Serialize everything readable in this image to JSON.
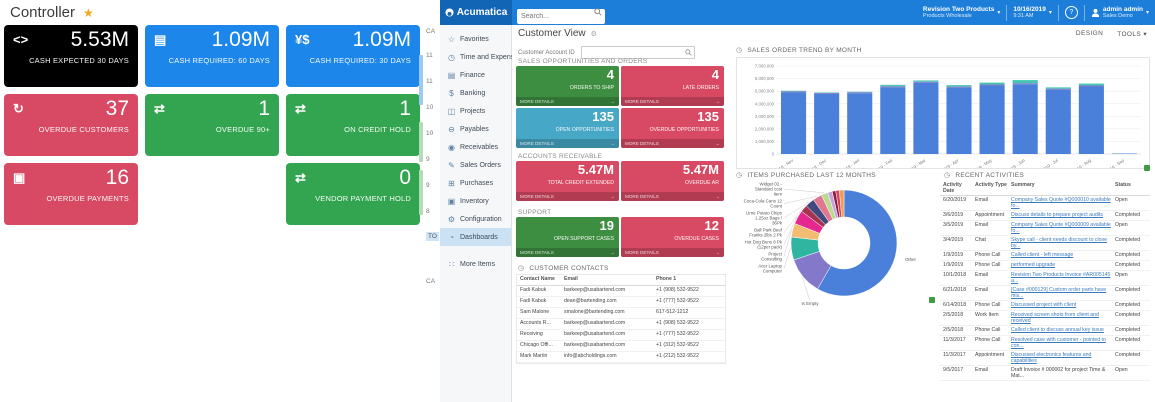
{
  "controller": {
    "title": "Controller",
    "tiles": [
      {
        "value": "5.53M",
        "label": "CASH EXPECTED 30 DAYS",
        "color": "#000000",
        "icon": "code-brackets-icon"
      },
      {
        "value": "1.09M",
        "label": "CASH REQUIRED: 60 DAYS",
        "color": "#1d86ea",
        "icon": "banknote-icon"
      },
      {
        "value": "1.09M",
        "label": "CASH REQUIRED: 30 DAYS",
        "color": "#1d86ea",
        "icon": "currency-icon"
      },
      {
        "value": "37",
        "label": "OVERDUE CUSTOMERS",
        "color": "#d84a63",
        "icon": "refresh-icon"
      },
      {
        "value": "1",
        "label": "OVERDUE 90+",
        "color": "#33a450",
        "icon": "swap-arrows-icon"
      },
      {
        "value": "1",
        "label": "ON CREDIT HOLD",
        "color": "#33a450",
        "icon": "swap-arrows-icon"
      },
      {
        "value": "16",
        "label": "OVERDUE PAYMENTS",
        "color": "#d84a63",
        "icon": "clipboard-icon"
      },
      null,
      {
        "value": "0",
        "label": "VENDOR PAYMENT HOLD",
        "color": "#33a450",
        "icon": "swap-arrows-icon"
      }
    ]
  },
  "cut_strip": {
    "header": "CA",
    "ticks": [
      "11",
      "11",
      "10",
      "10",
      "9",
      "9",
      "8"
    ],
    "highlight": "TO",
    "footer": "CA"
  },
  "topbar": {
    "brand": "Acumatica",
    "search_placeholder": "Search...",
    "company": {
      "line1": "Revision Two Products",
      "line2": "Products Wholesale"
    },
    "datetime": {
      "line1": "10/16/2019",
      "line2": "9:31 AM"
    },
    "help_glyph": "?",
    "user": {
      "line1": "admin admin",
      "line2": "Sales Demo"
    }
  },
  "sidebar": {
    "items": [
      {
        "label": "Favorites",
        "icon": "star-icon"
      },
      {
        "label": "Time and Expenses",
        "icon": "clock-icon"
      },
      {
        "label": "Finance",
        "icon": "ledger-icon"
      },
      {
        "label": "Banking",
        "icon": "dollar-icon"
      },
      {
        "label": "Projects",
        "icon": "projects-icon"
      },
      {
        "label": "Payables",
        "icon": "payables-icon"
      },
      {
        "label": "Receivables",
        "icon": "receivables-icon"
      },
      {
        "label": "Sales Orders",
        "icon": "sales-orders-icon"
      },
      {
        "label": "Purchases",
        "icon": "cart-icon"
      },
      {
        "label": "Inventory",
        "icon": "truck-icon"
      },
      {
        "label": "Configuration",
        "icon": "gear-icon"
      },
      {
        "label": "Dashboards",
        "icon": "dashboard-icon",
        "selected": true
      },
      {
        "label": "More Items",
        "icon": "grid-icon",
        "gap": true
      }
    ]
  },
  "page": {
    "title": "Customer View",
    "design_label": "DESIGN",
    "tools_label": "TOOLS ▾",
    "account_field_label": "Customer Account ID"
  },
  "sections": {
    "sales_opps": {
      "title": "SALES OPPORTUNITIES AND ORDERS",
      "tiles": [
        {
          "value": "4",
          "label": "ORDERS TO SHIP",
          "color": "#3e8e41",
          "footer": "MORE DETAILS"
        },
        {
          "value": "4",
          "label": "LATE ORDERS",
          "color": "#d84a63",
          "footer": "MORE DETAILS"
        },
        {
          "value": "135",
          "label": "OPEN OPPORTUNITIES",
          "color": "#47a7c6",
          "footer": "MORE DETAILS"
        },
        {
          "value": "135",
          "label": "OVERDUE OPPORTUNITIES",
          "color": "#d84a63",
          "footer": "MORE DETAILS"
        }
      ]
    },
    "accounts_receivable": {
      "title": "ACCOUNTS RECEIVABLE",
      "tiles": [
        {
          "value": "5.47M",
          "label": "TOTAL CREDIT EXTENDED",
          "color": "#d84a63",
          "footer": "MORE DETAILS"
        },
        {
          "value": "5.47M",
          "label": "OVERDUE AR",
          "color": "#d84a63",
          "footer": "MORE DETAILS"
        }
      ]
    },
    "support": {
      "title": "SUPPORT",
      "tiles": [
        {
          "value": "19",
          "label": "OPEN SUPPORT CASES",
          "color": "#3e8e41",
          "footer": "MORE DETAILS"
        },
        {
          "value": "12",
          "label": "OVERDUE CASES",
          "color": "#d84a63",
          "footer": "MORE DETAILS"
        }
      ]
    },
    "contacts": {
      "title": "CUSTOMER CONTACTS",
      "columns": [
        "Contact Name",
        "Email",
        "Phone 1"
      ],
      "rows": [
        {
          "name": "Fadi Kabuk",
          "email": "barkeep@usabartend.com",
          "phone": "+1 (908) 532-9522"
        },
        {
          "name": "Fadi Kabuk",
          "email": "dean@bartending.com",
          "phone": "+1 (777) 532-9522"
        },
        {
          "name": "Sam Malone",
          "email": "smalone@bartending.com",
          "phone": "617-512-1212"
        },
        {
          "name": "Accounts R...",
          "email": "barkeep@usabartend.com",
          "phone": "+1 (908) 532-9522"
        },
        {
          "name": "Receiving",
          "email": "barkeep@usabartend.com",
          "phone": "+1 (777) 532-9522"
        },
        {
          "name": "Chicago Offi...",
          "email": "barkeep@usabartend.com",
          "phone": "+1 (312) 532-9522"
        },
        {
          "name": "Mark Martin",
          "email": "info@abcholdings.com",
          "phone": "+1 (212) 532-9522"
        }
      ]
    }
  },
  "chart_data": [
    {
      "type": "bar",
      "title": "SALES ORDER TREND BY MONTH",
      "stacked": true,
      "categories": [
        "2018 - Nov",
        "2018 - Dec",
        "2019 - Jan",
        "2019 - Feb",
        "2019 - Mar",
        "2019 - Apr",
        "2019 - May",
        "2019 - Jun",
        "2019 - Jul",
        "2019 - Aug",
        "2019 - Sep"
      ],
      "series": [
        {
          "name": "series-1",
          "color": "#4a80d9",
          "values": [
            4900000,
            4780000,
            4830000,
            5300000,
            5670000,
            5280000,
            5450000,
            5550000,
            5120000,
            5370000,
            40000
          ]
        },
        {
          "name": "series-2",
          "color": "#8478cb",
          "values": [
            80000,
            80000,
            80000,
            80000,
            80000,
            80000,
            80000,
            80000,
            80000,
            80000,
            0
          ]
        },
        {
          "name": "series-3",
          "color": "#46c6b2",
          "values": [
            50000,
            40000,
            40000,
            120000,
            100000,
            120000,
            150000,
            250000,
            100000,
            150000,
            0
          ]
        }
      ],
      "ylim": [
        0,
        7000000
      ],
      "yticks": [
        "0",
        "1,000,000",
        "2,000,000",
        "3,000,000",
        "4,000,000",
        "5,000,000",
        "6,000,000",
        "7,000,000"
      ],
      "grid": true,
      "legend": "none"
    },
    {
      "type": "pie",
      "title": "ITEMS PURCHASED LAST 12 MONTHS",
      "donut": true,
      "slices": [
        {
          "label": "Other",
          "pct": 58.3,
          "color": "#4a80d9"
        },
        {
          "label": "Is Empty",
          "pct": 11.5,
          "color": "#8478cb"
        },
        {
          "label": "Acer Laptop Computer",
          "pct": 7,
          "color": "#2fb5a0"
        },
        {
          "label": "Project Consulting",
          "pct": 4.2,
          "color": "#f2bd72"
        },
        {
          "label": "Hot Dog Buns 8 Pk (12per pack)",
          "pct": 4.2,
          "color": "#e5288f"
        },
        {
          "label": "Ball Park Beef Franks 2lbs 2 Pk",
          "pct": 2.2,
          "color": "#a63350"
        },
        {
          "label": "Urne Potato Chips 1.25oz Bags / 36Pk",
          "pct": 2.8,
          "color": "#414a7e"
        },
        {
          "label": "Coca-Cola Cans 12 Count",
          "pct": 2.8,
          "color": "#e27791"
        },
        {
          "label": "Widget 02 - Standard cost item",
          "pct": 2,
          "color": "#b8dc8e"
        },
        {
          "label": "",
          "pct": 1.4,
          "color": "#c9a3e2"
        },
        {
          "label": "",
          "pct": 1.1,
          "color": "#8e2138"
        },
        {
          "label": "",
          "pct": 1.1,
          "color": "#d94062"
        },
        {
          "label": "",
          "pct": 1.4,
          "color": "#eb9e55"
        }
      ]
    },
    {
      "type": "table",
      "title": "RECENT ACTIVITIES",
      "columns": [
        "Activity Date",
        "Activity Type",
        "Summary",
        "Status"
      ],
      "rows": [
        {
          "date": "6/20/2019",
          "type": "Email",
          "summary": "Company Sales Quote #Q000010 available fo...",
          "status": "Open",
          "link": true
        },
        {
          "date": "3/6/2019",
          "type": "Appointment",
          "summary": "Discuss details to prepare project audits",
          "status": "Completed",
          "link": true
        },
        {
          "date": "3/5/2019",
          "type": "Email",
          "summary": "Company Sales Quote #Q000009 available fo...",
          "status": "Open",
          "link": true
        },
        {
          "date": "3/4/2019",
          "type": "Chat",
          "summary": "Skype call - client needs discount to close by...",
          "status": "Completed",
          "link": true
        },
        {
          "date": "1/9/2019",
          "type": "Phone Call",
          "summary": "Called client - left message",
          "status": "Completed",
          "link": true
        },
        {
          "date": "1/9/2019",
          "type": "Phone Call",
          "summary": "performed upgrade",
          "status": "Completed",
          "link": true
        },
        {
          "date": "10/1/2018",
          "type": "Email",
          "summary": "Revision Two Products Invoice #AR005145 a...",
          "status": "Open",
          "link": true
        },
        {
          "date": "6/21/2018",
          "type": "Email",
          "summary": "[Case #000129] Custom order parts have mis...",
          "status": "Completed",
          "link": true
        },
        {
          "date": "6/14/2018",
          "type": "Phone Call",
          "summary": "Discussed project with client",
          "status": "Completed",
          "link": true
        },
        {
          "date": "2/5/2018",
          "type": "Work Item",
          "summary": "Received screen shots from client and received",
          "status": "Completed",
          "link": true
        },
        {
          "date": "2/5/2018",
          "type": "Phone Call",
          "summary": "Called client to discuss annual key issue",
          "status": "Completed",
          "link": true
        },
        {
          "date": "11/3/2017",
          "type": "Phone Call",
          "summary": "Resolved case with customer - pointed to con...",
          "status": "Completed",
          "link": true
        },
        {
          "date": "11/3/2017",
          "type": "Appointment",
          "summary": "Discussed electronics features and capabilities",
          "status": "Completed",
          "link": true
        },
        {
          "date": "9/5/2017",
          "type": "Email",
          "summary": "Draft Invoice # 000002 for project Time & Mat...",
          "status": "Open",
          "link": false
        }
      ]
    }
  ]
}
